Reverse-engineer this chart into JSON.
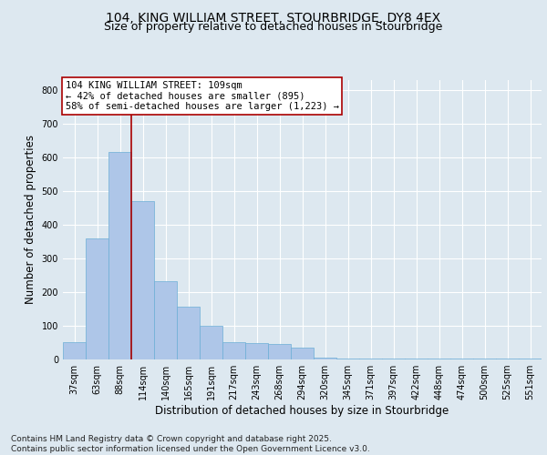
{
  "title1": "104, KING WILLIAM STREET, STOURBRIDGE, DY8 4EX",
  "title2": "Size of property relative to detached houses in Stourbridge",
  "xlabel": "Distribution of detached houses by size in Stourbridge",
  "ylabel": "Number of detached properties",
  "categories": [
    "37sqm",
    "63sqm",
    "88sqm",
    "114sqm",
    "140sqm",
    "165sqm",
    "191sqm",
    "217sqm",
    "243sqm",
    "268sqm",
    "294sqm",
    "320sqm",
    "345sqm",
    "371sqm",
    "397sqm",
    "422sqm",
    "448sqm",
    "474sqm",
    "500sqm",
    "525sqm",
    "551sqm"
  ],
  "values": [
    52,
    360,
    615,
    470,
    232,
    157,
    100,
    52,
    48,
    46,
    36,
    5,
    3,
    3,
    3,
    3,
    3,
    3,
    3,
    3,
    3
  ],
  "bar_color": "#aec6e8",
  "bar_edge_color": "#6baed6",
  "vline_x_index": 2.5,
  "vline_color": "#aa0000",
  "annotation_text": "104 KING WILLIAM STREET: 109sqm\n← 42% of detached houses are smaller (895)\n58% of semi-detached houses are larger (1,223) →",
  "annotation_box_color": "#ffffff",
  "annotation_box_edge": "#aa0000",
  "bg_color": "#dde8f0",
  "plot_bg_color": "#dde8f0",
  "grid_color": "#ffffff",
  "ylim": [
    0,
    830
  ],
  "yticks": [
    0,
    100,
    200,
    300,
    400,
    500,
    600,
    700,
    800
  ],
  "footnote": "Contains HM Land Registry data © Crown copyright and database right 2025.\nContains public sector information licensed under the Open Government Licence v3.0.",
  "title_fontsize": 10,
  "subtitle_fontsize": 9,
  "tick_fontsize": 7,
  "label_fontsize": 8.5,
  "footnote_fontsize": 6.5
}
